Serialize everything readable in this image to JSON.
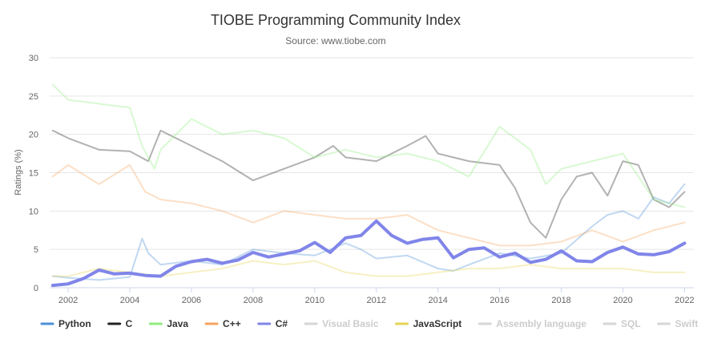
{
  "chart_data": {
    "type": "line",
    "title": "TIOBE Programming Community Index",
    "subtitle": "Source: www.tiobe.com",
    "xlabel": "",
    "ylabel": "Ratings (%)",
    "xlim": [
      2001.4,
      2022.3
    ],
    "ylim": [
      0,
      30
    ],
    "x_ticks": [
      2002,
      2004,
      2006,
      2008,
      2010,
      2012,
      2014,
      2016,
      2018,
      2020,
      2022
    ],
    "y_ticks": [
      0,
      5,
      10,
      15,
      20,
      25,
      30
    ],
    "grid": true,
    "legend_position": "bottom",
    "highlighted_series": "C#",
    "series": [
      {
        "name": "Python",
        "color": "#4a90d9",
        "visible": true,
        "highlighted": false,
        "points": [
          [
            2001.5,
            1.5
          ],
          [
            2002,
            1.3
          ],
          [
            2003,
            1.0
          ],
          [
            2004,
            1.4
          ],
          [
            2004.4,
            6.4
          ],
          [
            2004.6,
            4.5
          ],
          [
            2005,
            3.0
          ],
          [
            2006,
            3.5
          ],
          [
            2007,
            3.0
          ],
          [
            2008,
            5.0
          ],
          [
            2009,
            4.5
          ],
          [
            2010,
            4.2
          ],
          [
            2011,
            5.8
          ],
          [
            2011.5,
            5.0
          ],
          [
            2012,
            3.8
          ],
          [
            2013,
            4.2
          ],
          [
            2014,
            2.5
          ],
          [
            2014.5,
            2.2
          ],
          [
            2015,
            3.0
          ],
          [
            2016,
            4.5
          ],
          [
            2017,
            3.8
          ],
          [
            2018,
            4.5
          ],
          [
            2019,
            8.0
          ],
          [
            2019.5,
            9.5
          ],
          [
            2020,
            10.0
          ],
          [
            2020.5,
            9.0
          ],
          [
            2021,
            11.8
          ],
          [
            2021.5,
            11.0
          ],
          [
            2022,
            13.5
          ]
        ]
      },
      {
        "name": "C",
        "color": "#222222",
        "visible": true,
        "highlighted": false,
        "points": [
          [
            2001.5,
            20.5
          ],
          [
            2002,
            19.5
          ],
          [
            2003,
            18.0
          ],
          [
            2004,
            17.8
          ],
          [
            2004.6,
            16.5
          ],
          [
            2005,
            20.5
          ],
          [
            2006,
            18.5
          ],
          [
            2007,
            16.5
          ],
          [
            2008,
            14.0
          ],
          [
            2009,
            15.5
          ],
          [
            2010,
            17.0
          ],
          [
            2010.6,
            18.5
          ],
          [
            2011,
            17.0
          ],
          [
            2012,
            16.5
          ],
          [
            2013,
            18.5
          ],
          [
            2013.6,
            19.8
          ],
          [
            2014,
            17.5
          ],
          [
            2015,
            16.5
          ],
          [
            2016,
            16.0
          ],
          [
            2016.5,
            13.0
          ],
          [
            2017,
            8.5
          ],
          [
            2017.5,
            6.5
          ],
          [
            2018,
            11.5
          ],
          [
            2018.5,
            14.5
          ],
          [
            2019,
            15.0
          ],
          [
            2019.5,
            12.0
          ],
          [
            2020,
            16.5
          ],
          [
            2020.5,
            16.0
          ],
          [
            2021,
            11.5
          ],
          [
            2021.5,
            10.5
          ],
          [
            2022,
            12.5
          ]
        ]
      },
      {
        "name": "Java",
        "color": "#90ed7d",
        "visible": true,
        "highlighted": false,
        "points": [
          [
            2001.5,
            26.5
          ],
          [
            2002,
            24.5
          ],
          [
            2003,
            24.0
          ],
          [
            2004,
            23.5
          ],
          [
            2004.4,
            18.5
          ],
          [
            2004.8,
            15.5
          ],
          [
            2005,
            18.0
          ],
          [
            2006,
            22.0
          ],
          [
            2007,
            20.0
          ],
          [
            2008,
            20.5
          ],
          [
            2009,
            19.5
          ],
          [
            2010,
            17.0
          ],
          [
            2011,
            18.0
          ],
          [
            2012,
            17.0
          ],
          [
            2013,
            17.5
          ],
          [
            2014,
            16.5
          ],
          [
            2015,
            14.5
          ],
          [
            2016,
            21.0
          ],
          [
            2017,
            18.0
          ],
          [
            2017.5,
            13.5
          ],
          [
            2018,
            15.5
          ],
          [
            2019,
            16.5
          ],
          [
            2020,
            17.5
          ],
          [
            2021,
            11.5
          ],
          [
            2021.5,
            11.0
          ],
          [
            2022,
            10.5
          ]
        ]
      },
      {
        "name": "C++",
        "color": "#f7a35c",
        "visible": true,
        "highlighted": false,
        "points": [
          [
            2001.5,
            14.5
          ],
          [
            2002,
            16.0
          ],
          [
            2003,
            13.5
          ],
          [
            2004,
            16.0
          ],
          [
            2004.5,
            12.5
          ],
          [
            2005,
            11.5
          ],
          [
            2006,
            11.0
          ],
          [
            2007,
            10.0
          ],
          [
            2008,
            8.5
          ],
          [
            2009,
            10.0
          ],
          [
            2010,
            9.5
          ],
          [
            2011,
            9.0
          ],
          [
            2012,
            9.0
          ],
          [
            2013,
            9.5
          ],
          [
            2014,
            7.5
          ],
          [
            2015,
            6.5
          ],
          [
            2016,
            5.5
          ],
          [
            2017,
            5.5
          ],
          [
            2018,
            6.0
          ],
          [
            2019,
            7.5
          ],
          [
            2020,
            6.0
          ],
          [
            2021,
            7.5
          ],
          [
            2022,
            8.5
          ]
        ]
      },
      {
        "name": "C#",
        "color": "#8085e9",
        "visible": true,
        "highlighted": true,
        "points": [
          [
            2001.5,
            0.3
          ],
          [
            2002,
            0.5
          ],
          [
            2002.5,
            1.2
          ],
          [
            2003,
            2.3
          ],
          [
            2003.5,
            1.8
          ],
          [
            2004,
            1.9
          ],
          [
            2004.5,
            1.6
          ],
          [
            2005,
            1.5
          ],
          [
            2005.5,
            2.8
          ],
          [
            2006,
            3.4
          ],
          [
            2006.5,
            3.7
          ],
          [
            2007,
            3.2
          ],
          [
            2007.5,
            3.6
          ],
          [
            2008,
            4.6
          ],
          [
            2008.5,
            4.0
          ],
          [
            2009,
            4.4
          ],
          [
            2009.5,
            4.8
          ],
          [
            2010,
            5.9
          ],
          [
            2010.5,
            4.6
          ],
          [
            2011,
            6.5
          ],
          [
            2011.5,
            6.8
          ],
          [
            2012,
            8.7
          ],
          [
            2012.5,
            6.8
          ],
          [
            2013,
            5.8
          ],
          [
            2013.5,
            6.3
          ],
          [
            2014,
            6.5
          ],
          [
            2014.5,
            3.9
          ],
          [
            2015,
            5.0
          ],
          [
            2015.5,
            5.2
          ],
          [
            2016,
            4.0
          ],
          [
            2016.5,
            4.5
          ],
          [
            2017,
            3.3
          ],
          [
            2017.5,
            3.7
          ],
          [
            2018,
            4.8
          ],
          [
            2018.5,
            3.5
          ],
          [
            2019,
            3.4
          ],
          [
            2019.5,
            4.6
          ],
          [
            2020,
            5.3
          ],
          [
            2020.5,
            4.4
          ],
          [
            2021,
            4.3
          ],
          [
            2021.5,
            4.7
          ],
          [
            2022,
            5.8
          ]
        ]
      },
      {
        "name": "Visual Basic",
        "color": "#cccccc",
        "visible": false,
        "highlighted": false,
        "points": []
      },
      {
        "name": "JavaScript",
        "color": "#e4d354",
        "visible": true,
        "highlighted": false,
        "points": [
          [
            2001.5,
            1.5
          ],
          [
            2002,
            1.5
          ],
          [
            2003,
            2.5
          ],
          [
            2004,
            2.0
          ],
          [
            2005,
            1.5
          ],
          [
            2006,
            2.0
          ],
          [
            2007,
            2.5
          ],
          [
            2008,
            3.5
          ],
          [
            2009,
            3.0
          ],
          [
            2010,
            3.5
          ],
          [
            2011,
            2.0
          ],
          [
            2012,
            1.5
          ],
          [
            2013,
            1.5
          ],
          [
            2014,
            2.0
          ],
          [
            2015,
            2.5
          ],
          [
            2016,
            2.5
          ],
          [
            2017,
            3.0
          ],
          [
            2018,
            2.5
          ],
          [
            2019,
            2.5
          ],
          [
            2020,
            2.5
          ],
          [
            2021,
            2.0
          ],
          [
            2022,
            2.0
          ]
        ]
      },
      {
        "name": "Assembly language",
        "color": "#cccccc",
        "visible": false,
        "highlighted": false,
        "points": []
      },
      {
        "name": "SQL",
        "color": "#cccccc",
        "visible": false,
        "highlighted": false,
        "points": []
      },
      {
        "name": "Swift",
        "color": "#cccccc",
        "visible": false,
        "highlighted": false,
        "points": []
      }
    ]
  }
}
